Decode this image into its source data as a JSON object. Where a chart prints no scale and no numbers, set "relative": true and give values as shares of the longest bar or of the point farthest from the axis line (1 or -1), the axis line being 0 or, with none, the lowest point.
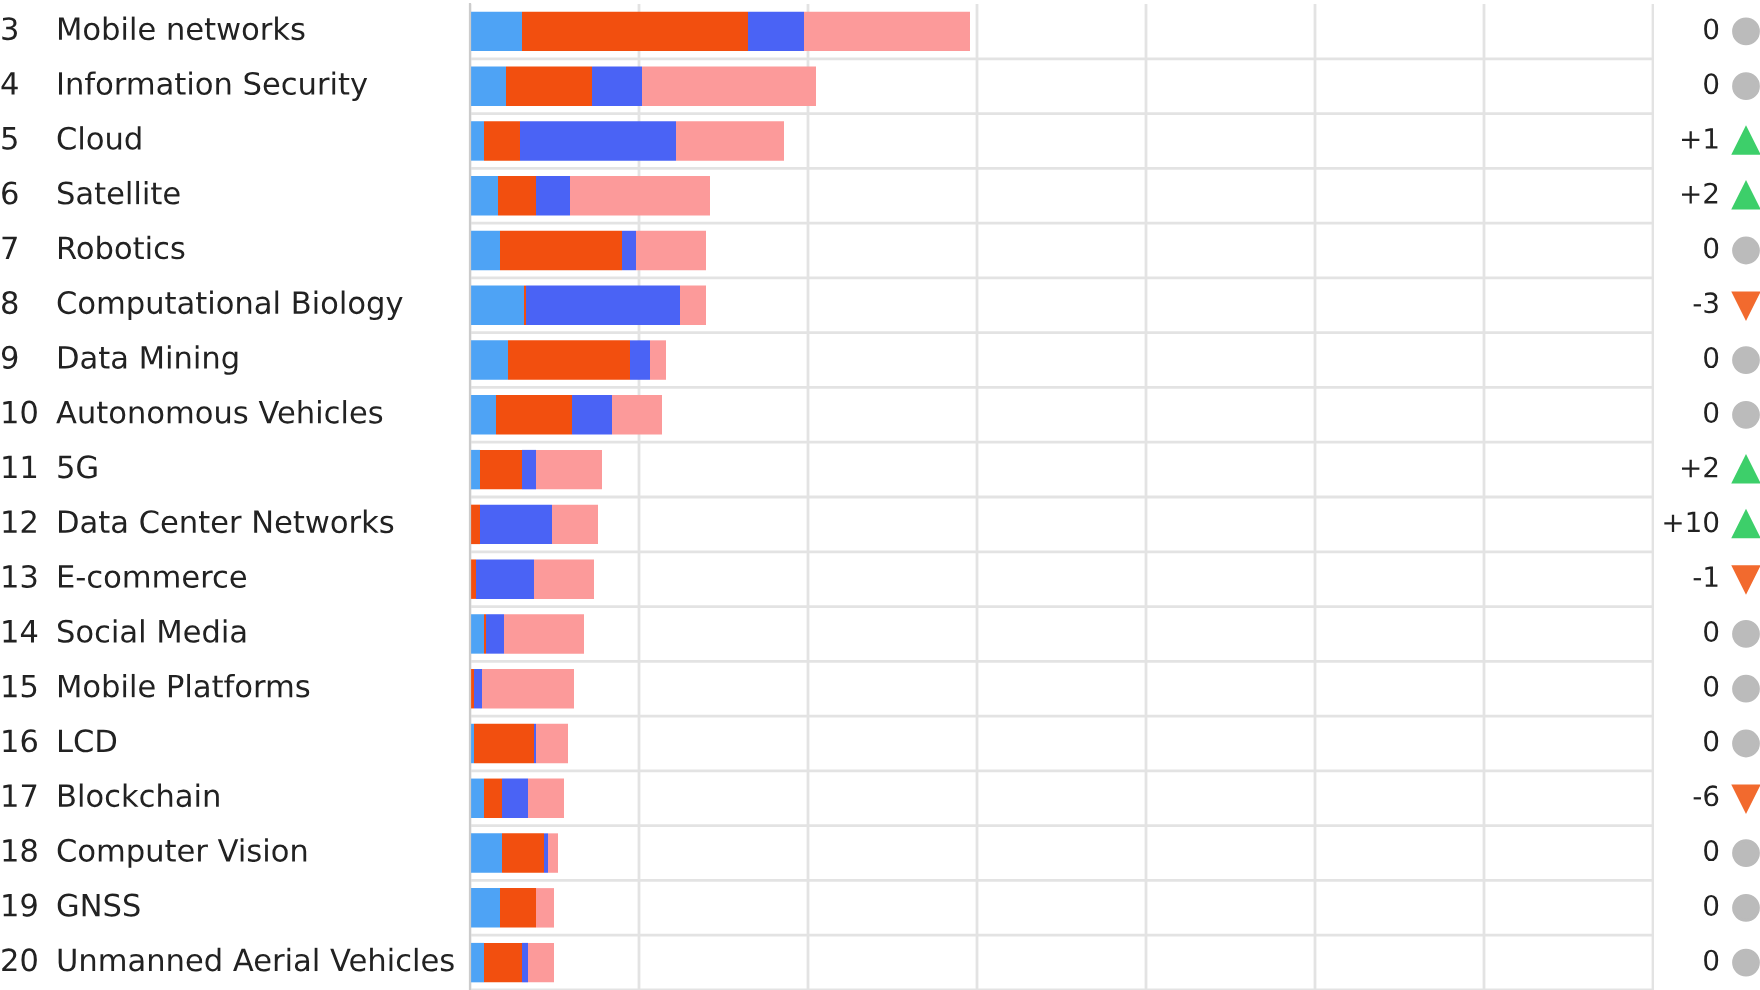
{
  "chart_data": {
    "type": "bar",
    "orientation": "horizontal",
    "stacked": true,
    "relative": true,
    "grid": true,
    "categories": [
      "3 Mobile networks",
      "4 Information Security",
      "5 Cloud",
      "6 Satellite",
      "7 Robotics",
      "8 Computational Biology",
      "9 Data Mining",
      "10 Autonomous Vehicles",
      "11 5G",
      "12 Data Center Networks",
      "13 E-commerce",
      "14 Social Media",
      "15 Mobile Platforms",
      "16 LCD",
      "17 Blockchain",
      "18 Computer Vision",
      "19 GNSS",
      "20 Unmanned Aerial Vehicles"
    ],
    "series": [
      {
        "color": "#4ea3f5",
        "values": [
          0.104,
          0.072,
          0.028,
          0.056,
          0.06,
          0.108,
          0.076,
          0.052,
          0.02,
          0,
          0,
          0.028,
          0,
          0.008,
          0.028,
          0.064,
          0.06,
          0.028
        ]
      },
      {
        "color": "#f24f0f",
        "values": [
          0.452,
          0.172,
          0.072,
          0.076,
          0.244,
          0.004,
          0.244,
          0.152,
          0.084,
          0.02,
          0.012,
          0.004,
          0.008,
          0.12,
          0.036,
          0.084,
          0.072,
          0.076
        ]
      },
      {
        "color": "#4a63f5",
        "values": [
          0.112,
          0.1,
          0.312,
          0.068,
          0.028,
          0.308,
          0.04,
          0.08,
          0.028,
          0.144,
          0.116,
          0.036,
          0.016,
          0.004,
          0.052,
          0.008,
          0,
          0.012
        ]
      },
      {
        "color": "#fc9a9a",
        "values": [
          0.332,
          0.348,
          0.216,
          0.28,
          0.14,
          0.052,
          0.032,
          0.1,
          0.132,
          0.092,
          0.12,
          0.16,
          0.184,
          0.064,
          0.072,
          0.02,
          0.036,
          0.052
        ]
      }
    ],
    "annotations": [
      "0",
      "0",
      "+1",
      "+2",
      "0",
      "-3",
      "0",
      "0",
      "+2",
      "+10",
      "-1",
      "0",
      "0",
      "0",
      "-6",
      "0",
      "0",
      "0"
    ]
  }
}
